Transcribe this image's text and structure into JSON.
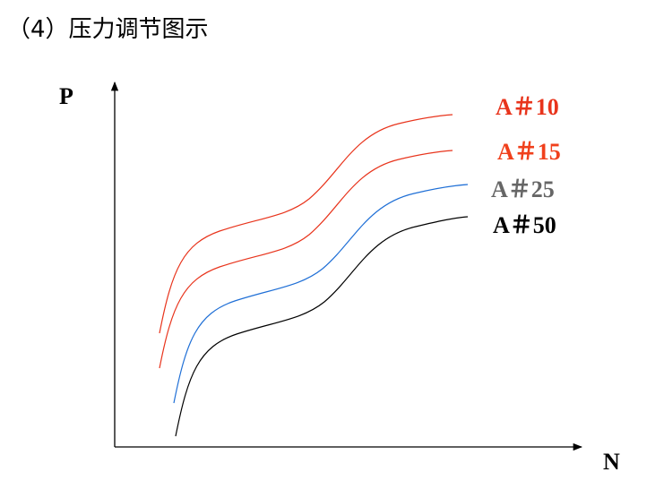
{
  "header": {
    "title": "（4）压力调节图示"
  },
  "axes": {
    "y_label": "P",
    "x_label": "N"
  },
  "curves": [
    {
      "label": "A＃10"
    },
    {
      "label": "A＃15"
    },
    {
      "label": "A＃25"
    },
    {
      "label": "A＃50"
    }
  ]
}
